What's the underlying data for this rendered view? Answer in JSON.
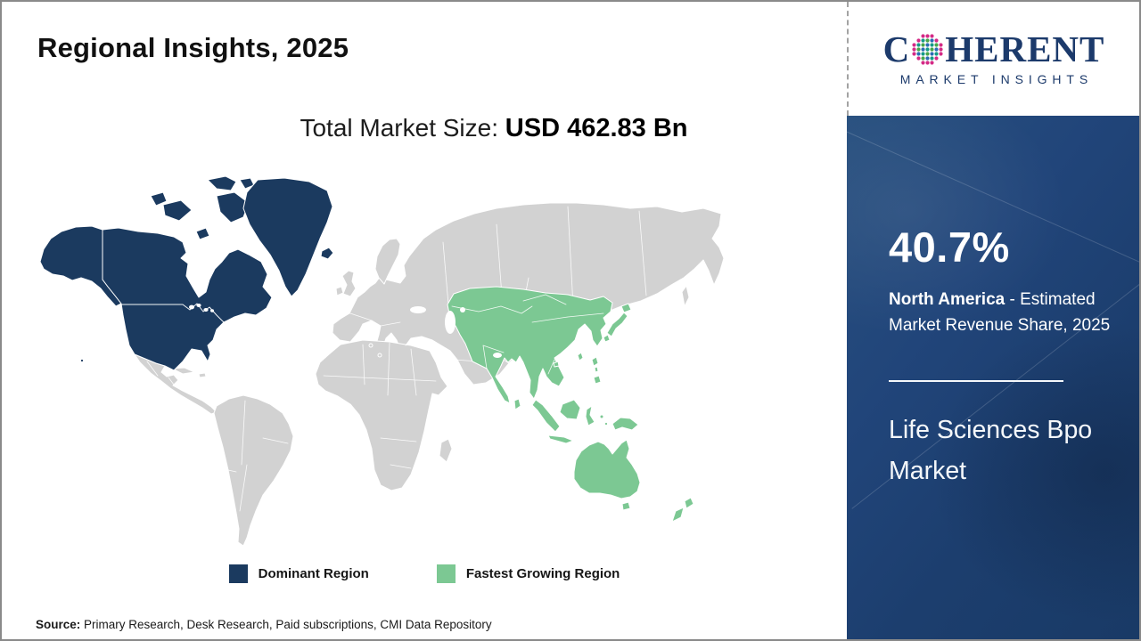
{
  "header": {
    "title": "Regional Insights, 2025"
  },
  "logo": {
    "prefix": "C",
    "suffix": "HERENT",
    "tagline": "MARKET INSIGHTS",
    "brand_color": "#1c3a6b",
    "dot_colors": [
      "#d42a86",
      "#159a88",
      "#47a64b",
      "#2a6db4"
    ]
  },
  "market_size": {
    "label": "Total Market Size:",
    "value": "USD 462.83 Bn"
  },
  "legend": {
    "dominant": {
      "label": "Dominant Region",
      "color": "#1b3a5f"
    },
    "fastest": {
      "label": "Fastest Growing Region",
      "color": "#7cc893"
    }
  },
  "sidebar": {
    "share": "40.7%",
    "region": "North America",
    "caption_rest": " - Estimated Market Revenue Share, 2025",
    "market_name": "Life Sciences Bpo Market"
  },
  "source": {
    "label": "Source:",
    "text": " Primary Research, Desk Research, Paid subscriptions, CMI Data Repository"
  },
  "colors": {
    "dominant_region": "#1b3a5f",
    "fastest_growing_region": "#7cc893",
    "other_land": "#d2d2d2",
    "sidebar_background": "#1e4273",
    "ocean": "#ffffff"
  },
  "chart_data": {
    "type": "choropleth_map",
    "title": "Regional Insights, 2025",
    "total_market_size": "USD 462.83 Bn",
    "market": "Life Sciences Bpo Market",
    "legend_entries": [
      "Dominant Region",
      "Fastest Growing Region"
    ],
    "regions": [
      {
        "name": "North America",
        "role": "Dominant Region",
        "estimated_market_revenue_share_2025": "40.7%",
        "color": "#1b3a5f"
      },
      {
        "name": "Asia Pacific",
        "role": "Fastest Growing Region",
        "color": "#7cc893"
      },
      {
        "name": "Rest of World",
        "role": "Other",
        "color": "#d2d2d2"
      }
    ]
  }
}
